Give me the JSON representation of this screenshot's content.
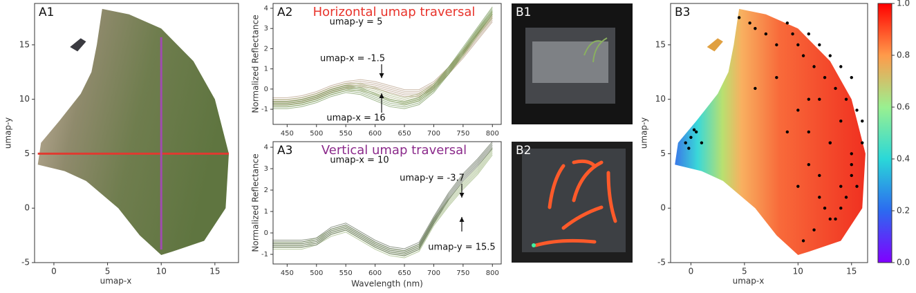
{
  "chart_data": [
    {
      "type": "umap",
      "panel": "A1",
      "xlabel": "umap-x",
      "ylabel": "umap-y",
      "xlim": [
        -1.8,
        17.2
      ],
      "ylim": [
        -5,
        18.8
      ],
      "xticks": [
        0,
        5,
        10,
        15
      ],
      "yticks": [
        -5,
        0,
        5,
        10,
        15
      ],
      "lines": [
        {
          "color": "#e03a30",
          "x": [
            -1.5,
            16.3
          ],
          "y": [
            5,
            5
          ]
        },
        {
          "color": "#a04bb0",
          "x": [
            10,
            10
          ],
          "y": [
            -3.8,
            15.7
          ]
        }
      ]
    },
    {
      "type": "line",
      "panel": "A2",
      "title": "Horizontal umap traversal",
      "title_color": "#e8332b",
      "ylabel": "Normalized Reflectance",
      "xlim": [
        426,
        815
      ],
      "ylim": [
        -1.75,
        4.24
      ],
      "xticks": [
        450,
        500,
        550,
        600,
        650,
        700,
        750,
        800
      ],
      "yticks": [
        -1,
        0,
        1,
        2,
        3,
        4
      ],
      "annotations": [
        "umap-y = 5",
        "umap-x = -1.5",
        "umap-x = 16"
      ],
      "x": [
        425,
        450,
        475,
        500,
        525,
        550,
        575,
        600,
        625,
        650,
        675,
        700,
        725,
        750,
        775,
        800
      ],
      "series": [
        {
          "color": "#a08060",
          "values": [
            -0.6,
            -0.6,
            -0.5,
            -0.3,
            0.0,
            0.2,
            0.3,
            0.2,
            0.0,
            -0.2,
            -0.2,
            0.2,
            0.9,
            1.7,
            2.6,
            3.5
          ]
        },
        {
          "color": "#8a9a50",
          "values": [
            -0.7,
            -0.7,
            -0.6,
            -0.4,
            -0.1,
            0.1,
            0.1,
            -0.1,
            -0.4,
            -0.6,
            -0.4,
            0.1,
            0.9,
            1.8,
            2.8,
            3.7
          ]
        },
        {
          "color": "#4f7a2a",
          "values": [
            -0.8,
            -0.8,
            -0.7,
            -0.5,
            -0.2,
            0.0,
            -0.1,
            -0.4,
            -0.7,
            -0.8,
            -0.6,
            0.0,
            0.9,
            1.9,
            2.9,
            3.9
          ]
        }
      ]
    },
    {
      "type": "line",
      "panel": "A3",
      "title": "Vertical umap traversal",
      "title_color": "#8b2a8b",
      "ylabel": "Normalized Reflectance",
      "xlabel": "Wavelength (nm)",
      "xlim": [
        426,
        815
      ],
      "ylim": [
        -1.45,
        4.26
      ],
      "xticks": [
        450,
        500,
        550,
        600,
        650,
        700,
        750,
        800
      ],
      "yticks": [
        -1,
        0,
        1,
        2,
        3,
        4
      ],
      "annotations": [
        "umap-x = 10",
        "umap-y = -3.7",
        "umap-y = 15.5"
      ],
      "x": [
        425,
        450,
        475,
        500,
        525,
        550,
        575,
        600,
        625,
        650,
        675,
        700,
        725,
        750,
        775,
        800
      ],
      "series": [
        {
          "color": "#7a9a50",
          "values": [
            -0.6,
            -0.6,
            -0.6,
            -0.4,
            0.0,
            0.2,
            -0.2,
            -0.6,
            -0.9,
            -1.0,
            -0.7,
            0.5,
            1.4,
            2.2,
            2.9,
            3.8
          ]
        },
        {
          "color": "#2f3f25",
          "values": [
            -0.5,
            -0.5,
            -0.5,
            -0.4,
            0.1,
            0.3,
            -0.1,
            -0.5,
            -0.8,
            -0.9,
            -0.6,
            0.6,
            1.7,
            2.6,
            3.3,
            4.1
          ]
        }
      ]
    },
    {
      "type": "photo",
      "panel": "B1"
    },
    {
      "type": "photo",
      "panel": "B2"
    },
    {
      "type": "scatter",
      "panel": "B3",
      "xlabel": "umap-x",
      "ylabel": "umap-y",
      "color": "#000000",
      "xlim": [
        -1.9,
        16.5
      ],
      "ylim": [
        -5,
        18.8
      ],
      "xticks": [
        0,
        5,
        10,
        15
      ],
      "yticks": [
        -5,
        0,
        5,
        10,
        15
      ],
      "x": [
        4.5,
        5.5,
        6,
        7,
        8,
        9,
        9.5,
        10,
        10.5,
        11,
        11.5,
        12,
        12.5,
        13,
        13.5,
        14,
        14.5,
        15,
        15.5,
        16,
        10,
        11,
        12,
        13,
        14,
        15,
        11,
        12,
        13,
        14,
        15,
        16,
        12,
        13,
        14,
        15,
        10.5,
        11.5,
        12.5,
        13.5,
        14.5,
        15.5,
        -0.5,
        0,
        0.5,
        1,
        -0.2,
        0.3,
        6,
        8,
        9,
        10,
        11
      ],
      "y": [
        17.5,
        17,
        16.5,
        16,
        15,
        17,
        16,
        15,
        14,
        16,
        13,
        15,
        12,
        14,
        11,
        13,
        10,
        12,
        9,
        8,
        9,
        7,
        10,
        6,
        8,
        5,
        4,
        3,
        6,
        2,
        4,
        6,
        1,
        -1,
        0,
        3,
        -3,
        -2,
        0,
        -1,
        1,
        2,
        6,
        6.5,
        7,
        6,
        5.5,
        7.2,
        11,
        12,
        7,
        2,
        10
      ],
      "colorbar": {
        "lim": [
          0,
          1
        ],
        "ticks": [
          {
            "value": 0,
            "label": "0.0"
          },
          {
            "value": 0.2,
            "label": "0.2"
          },
          {
            "value": 0.4,
            "label": "0.4"
          },
          {
            "value": 0.6,
            "label": "0.6"
          },
          {
            "value": 0.8,
            "label": "0.8"
          },
          {
            "value": 1,
            "label": "1.0"
          }
        ]
      }
    }
  ]
}
